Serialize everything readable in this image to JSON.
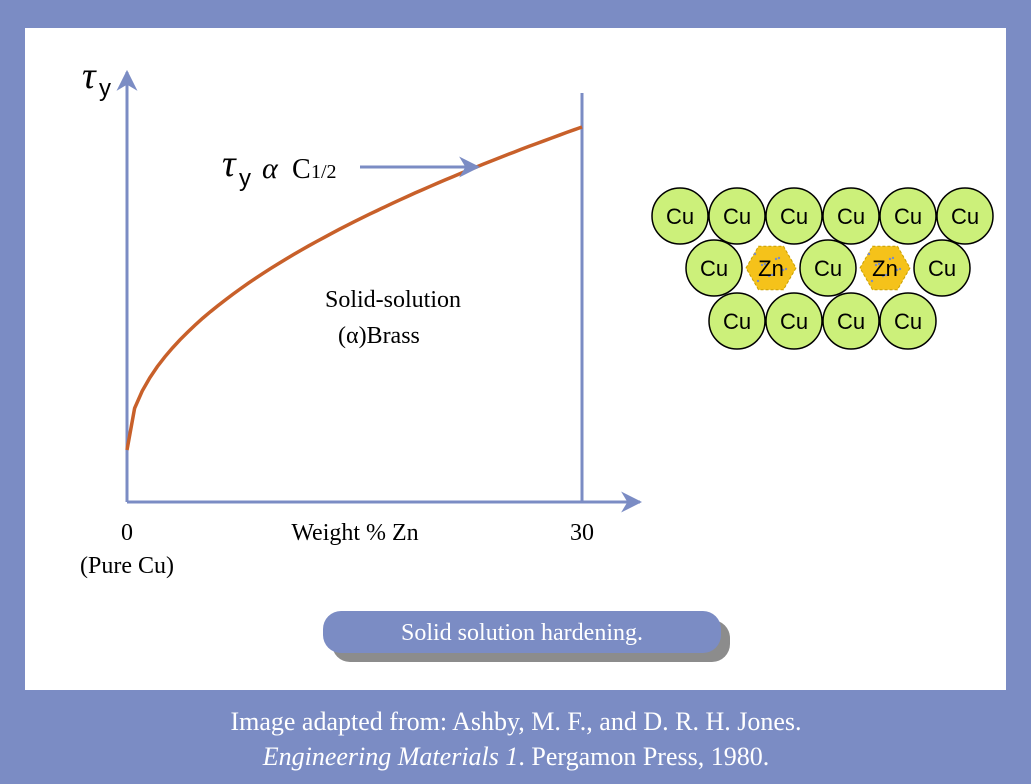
{
  "graph": {
    "y_axis_label": {
      "symbol": "τ",
      "subscript": "y"
    },
    "curve_label": {
      "symbol": "τ",
      "subscript": "y",
      "relation": "α",
      "base": "C",
      "exponent": "1/2"
    },
    "region_label": [
      "Solid-solution",
      "(α)Brass"
    ],
    "x_ticks": [
      "0",
      "30"
    ],
    "x_origin_note": "(Pure Cu)",
    "x_axis_label": "Weight % Zn"
  },
  "lattice": {
    "rows": [
      [
        "Cu",
        "Cu",
        "Cu",
        "Cu",
        "Cu",
        "Cu"
      ],
      [
        "Cu",
        "Zn",
        "Cu",
        "Zn",
        "Cu"
      ],
      [
        "Cu",
        "Cu",
        "Cu",
        "Cu"
      ]
    ]
  },
  "button": "Solid solution hardening.",
  "caption": {
    "line1": "Image adapted from: Ashby, M. F., and D. R. H. Jones.",
    "line2_title": "Engineering Materials 1",
    "line2_rest": ". Pergamon Press, 1980."
  }
}
